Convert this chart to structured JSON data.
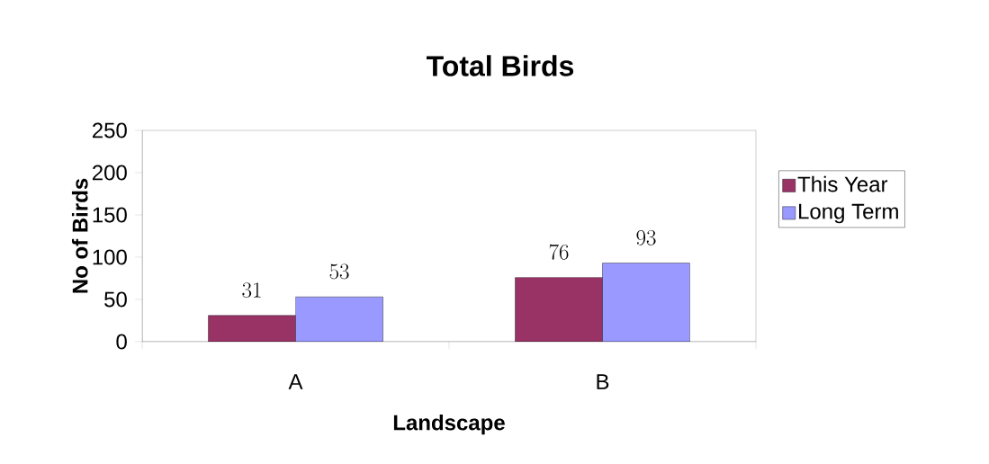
{
  "chart_data": {
    "type": "bar",
    "title": "Total Birds",
    "xlabel": "Landscape",
    "ylabel": "No of Birds",
    "categories": [
      "A",
      "B"
    ],
    "series": [
      {
        "name": "This Year",
        "color": "#993366",
        "values": [
          31,
          76
        ]
      },
      {
        "name": "Long Term",
        "color": "#9999ff",
        "values": [
          53,
          93
        ]
      }
    ],
    "ylim": [
      0,
      250
    ],
    "yticks": [
      0,
      50,
      100,
      150,
      200,
      250
    ],
    "data_labels": true,
    "legend": "right",
    "grid": false
  }
}
